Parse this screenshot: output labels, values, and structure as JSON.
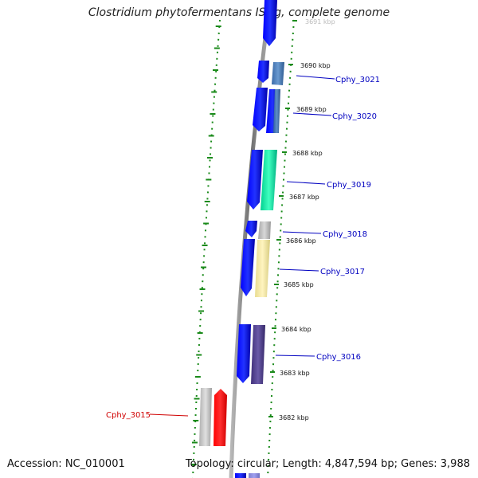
{
  "title": "Clostridium phytofermentans ISDg, complete genome",
  "footer": {
    "accession": "Accession: NC_010001",
    "summary": "Topology: circular; Length: 4,847,594 bp; Genes: 3,988"
  },
  "colors": {
    "label_default": "#0000c0",
    "label_highlight": "#d00000",
    "dashes": "#1a8a1a",
    "backbone": "#808080"
  },
  "ruler": [
    {
      "label": "3691 kbp"
    },
    {
      "label": "3690 kbp"
    },
    {
      "label": "3689 kbp"
    },
    {
      "label": "3688 kbp"
    },
    {
      "label": "3687 kbp"
    },
    {
      "label": "3686 kbp"
    },
    {
      "label": "3685 kbp"
    },
    {
      "label": "3684 kbp"
    },
    {
      "label": "3683 kbp"
    },
    {
      "label": "3682 kbp"
    }
  ],
  "gene_labels": [
    {
      "id": "cphy_3021",
      "text": "Cphy_3021",
      "highlight": false
    },
    {
      "id": "cphy_3020",
      "text": "Cphy_3020",
      "highlight": false
    },
    {
      "id": "cphy_3019",
      "text": "Cphy_3019",
      "highlight": false
    },
    {
      "id": "cphy_3018",
      "text": "Cphy_3018",
      "highlight": false
    },
    {
      "id": "cphy_3017",
      "text": "Cphy_3017",
      "highlight": false
    },
    {
      "id": "cphy_3016",
      "text": "Cphy_3016",
      "highlight": false
    },
    {
      "id": "cphy_3015",
      "text": "Cphy_3015",
      "highlight": true
    }
  ]
}
